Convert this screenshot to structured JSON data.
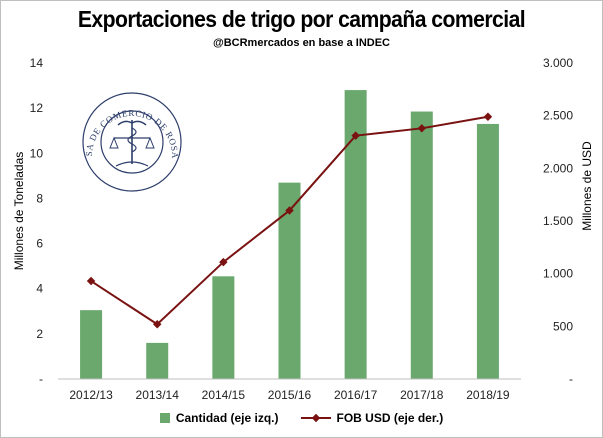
{
  "chart_data": {
    "type": "bar",
    "title": "Exportaciones de trigo por campaña comercial",
    "subtitle": "@BCRmercados en base a INDEC",
    "categories": [
      "2012/13",
      "2013/14",
      "2014/15",
      "2015/16",
      "2016/17",
      "2017/18",
      "2018/19"
    ],
    "series": [
      {
        "name": "Cantidad (eje izq.)",
        "type": "bar",
        "axis": "left",
        "color": "#6aa86e",
        "values": [
          3.05,
          1.6,
          4.55,
          8.7,
          12.8,
          11.85,
          11.3
        ]
      },
      {
        "name": "FOB USD (eje der.)",
        "type": "line",
        "axis": "right",
        "color": "#7a1212",
        "values": [
          930,
          520,
          1110,
          1600,
          2310,
          2380,
          2490
        ]
      }
    ],
    "y_left": {
      "label": "Millones de Toneladas",
      "lim": [
        0,
        14
      ],
      "ticks": [
        0,
        2,
        4,
        6,
        8,
        10,
        12,
        14
      ],
      "tick_labels": [
        "-",
        "2",
        "4",
        "6",
        "8",
        "10",
        "12",
        "14"
      ]
    },
    "y_right": {
      "label": "Millones de USD",
      "lim": [
        0,
        3000
      ],
      "ticks": [
        0,
        500,
        1000,
        1500,
        2000,
        2500,
        3000
      ],
      "tick_labels": [
        "-",
        "500",
        "1.000",
        "1.500",
        "2.000",
        "2.500",
        "3.000"
      ]
    },
    "grid": false,
    "legend_position": "bottom"
  },
  "logo": {
    "name": "bolsa-de-comercio-de-rosario-seal",
    "text": "BOLSA DE COMERCIO DE ROSARIO",
    "color": "#2d3e6b"
  }
}
